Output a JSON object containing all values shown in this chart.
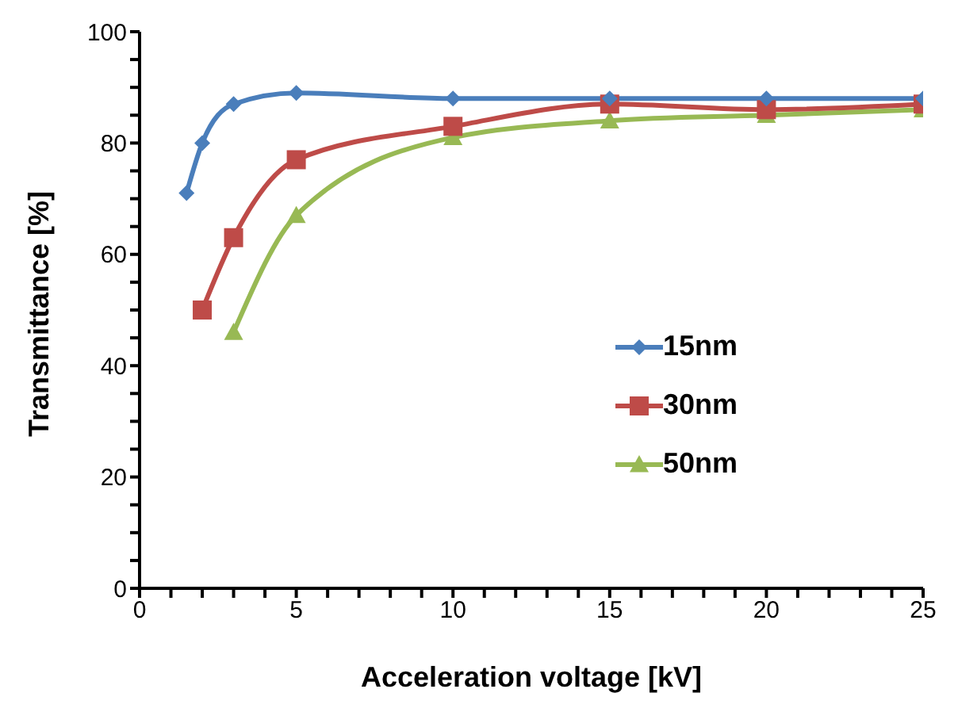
{
  "chart_data": {
    "type": "line",
    "xlabel": "Acceleration voltage [kV]",
    "ylabel": "Transmittance [%]",
    "xlim": [
      0,
      25
    ],
    "xticks": [
      0,
      {
        "value": 1,
        "label": null
      },
      {
        "value": 2,
        "label": null
      },
      {
        "value": 3,
        "label": null
      },
      {
        "value": 4,
        "label": null
      },
      5,
      {
        "value": 6,
        "label": null
      },
      {
        "value": 7,
        "label": null
      },
      {
        "value": 8,
        "label": null
      },
      {
        "value": 9,
        "label": null
      },
      10,
      {
        "value": 11,
        "label": null
      },
      {
        "value": 12,
        "label": null
      },
      {
        "value": 13,
        "label": null
      },
      {
        "value": 14,
        "label": null
      },
      15,
      {
        "value": 16,
        "label": null
      },
      {
        "value": 17,
        "label": null
      },
      {
        "value": 18,
        "label": null
      },
      {
        "value": 19,
        "label": null
      },
      20,
      {
        "value": 21,
        "label": null
      },
      {
        "value": 22,
        "label": null
      },
      {
        "value": 23,
        "label": null
      },
      {
        "value": 24,
        "label": null
      },
      25
    ],
    "ylim": [
      0,
      100
    ],
    "yticks": [
      0,
      {
        "value": 5,
        "label": null
      },
      {
        "value": 10,
        "label": null
      },
      {
        "value": 15,
        "label": null
      },
      20,
      {
        "value": 25,
        "label": null
      },
      {
        "value": 30,
        "label": null
      },
      {
        "value": 35,
        "label": null
      },
      40,
      {
        "value": 45,
        "label": null
      },
      {
        "value": 50,
        "label": null
      },
      {
        "value": 55,
        "label": null
      },
      60,
      {
        "value": 65,
        "label": null
      },
      {
        "value": 70,
        "label": null
      },
      {
        "value": 75,
        "label": null
      },
      80,
      {
        "value": 85,
        "label": null
      },
      {
        "value": 90,
        "label": null
      },
      {
        "value": 95,
        "label": null
      },
      100
    ],
    "grid": false,
    "legend": "right",
    "line_style": "solid",
    "series": [
      {
        "name": "15nm",
        "color": "#4a7ebb",
        "marker": "diamond",
        "x": [
          1.5,
          2,
          3,
          5,
          10,
          15,
          20,
          25
        ],
        "values": [
          71,
          80,
          87,
          89,
          88,
          88,
          88,
          88
        ]
      },
      {
        "name": "30nm",
        "color": "#be4b48",
        "marker": "square",
        "x": [
          2,
          3,
          5,
          10,
          15,
          20,
          25
        ],
        "values": [
          50,
          63,
          77,
          83,
          87,
          86,
          87
        ]
      },
      {
        "name": "50nm",
        "color": "#98b954",
        "marker": "triangle",
        "x": [
          3,
          5,
          10,
          15,
          20,
          25
        ],
        "values": [
          46,
          67,
          81,
          84,
          85,
          86
        ]
      }
    ]
  }
}
